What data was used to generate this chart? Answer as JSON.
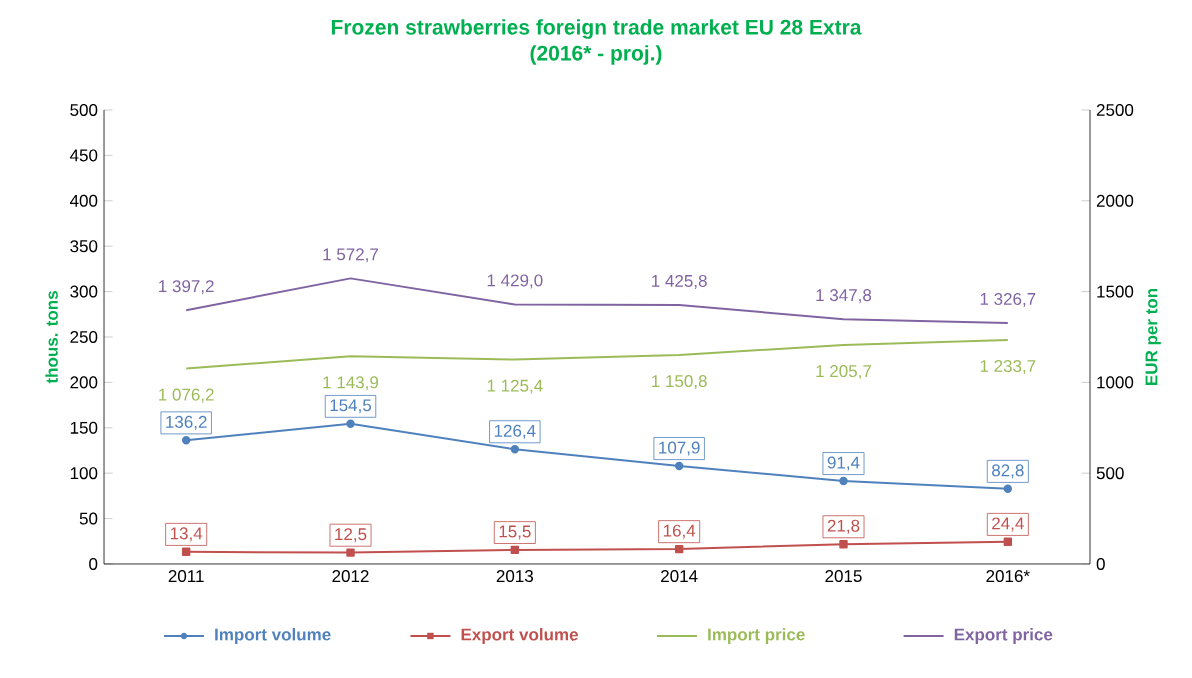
{
  "chart_data": {
    "type": "line",
    "title": "Frozen strawberries foreign trade market EU 28 Extra",
    "subtitle": "(2016* - proj.)",
    "categories": [
      "2011",
      "2012",
      "2013",
      "2014",
      "2015",
      "2016*"
    ],
    "ylabel": "thous. tons",
    "y2label": "EUR per ton",
    "ylim": [
      0,
      500
    ],
    "yticks": [
      0,
      50,
      100,
      150,
      200,
      250,
      300,
      350,
      400,
      450,
      500
    ],
    "y2lim": [
      0,
      2500
    ],
    "y2ticks": [
      0,
      500,
      1000,
      1500,
      2000,
      2500
    ],
    "legend": "bottom",
    "series": [
      {
        "name": "Import volume",
        "color": "#4f81bd",
        "marker": "circle",
        "values": [
          136.2,
          154.5,
          126.4,
          107.9,
          91.4,
          82.8
        ],
        "value_labels": [
          "136,2",
          "154,5",
          "126,4",
          "107,9",
          "91,4",
          "82,8"
        ]
      },
      {
        "name": "Export volume",
        "color": "#c0504d",
        "marker": "square",
        "values": [
          13.4,
          12.5,
          15.5,
          16.4,
          21.8,
          24.4
        ],
        "value_labels": [
          "13,4",
          "12,5",
          "15,5",
          "16,4",
          "21,8",
          "24,4"
        ]
      },
      {
        "name": "Import price",
        "color": "#9bbb59",
        "marker": "none",
        "axis": "y2",
        "values": [
          1076.2,
          1143.9,
          1125.4,
          1150.8,
          1205.7,
          1233.7
        ],
        "value_labels": [
          "1 076,2",
          "1 143,9",
          "1 125,4",
          "1 150,8",
          "1 205,7",
          "1 233,7"
        ]
      },
      {
        "name": "Export price",
        "color": "#8064a2",
        "marker": "none",
        "axis": "y2",
        "values": [
          1397.2,
          1572.7,
          1429.0,
          1425.8,
          1347.8,
          1326.7
        ],
        "value_labels": [
          "1 397,2",
          "1 572,7",
          "1 429,0",
          "1 425,8",
          "1 347,8",
          "1 326,7"
        ]
      }
    ]
  }
}
